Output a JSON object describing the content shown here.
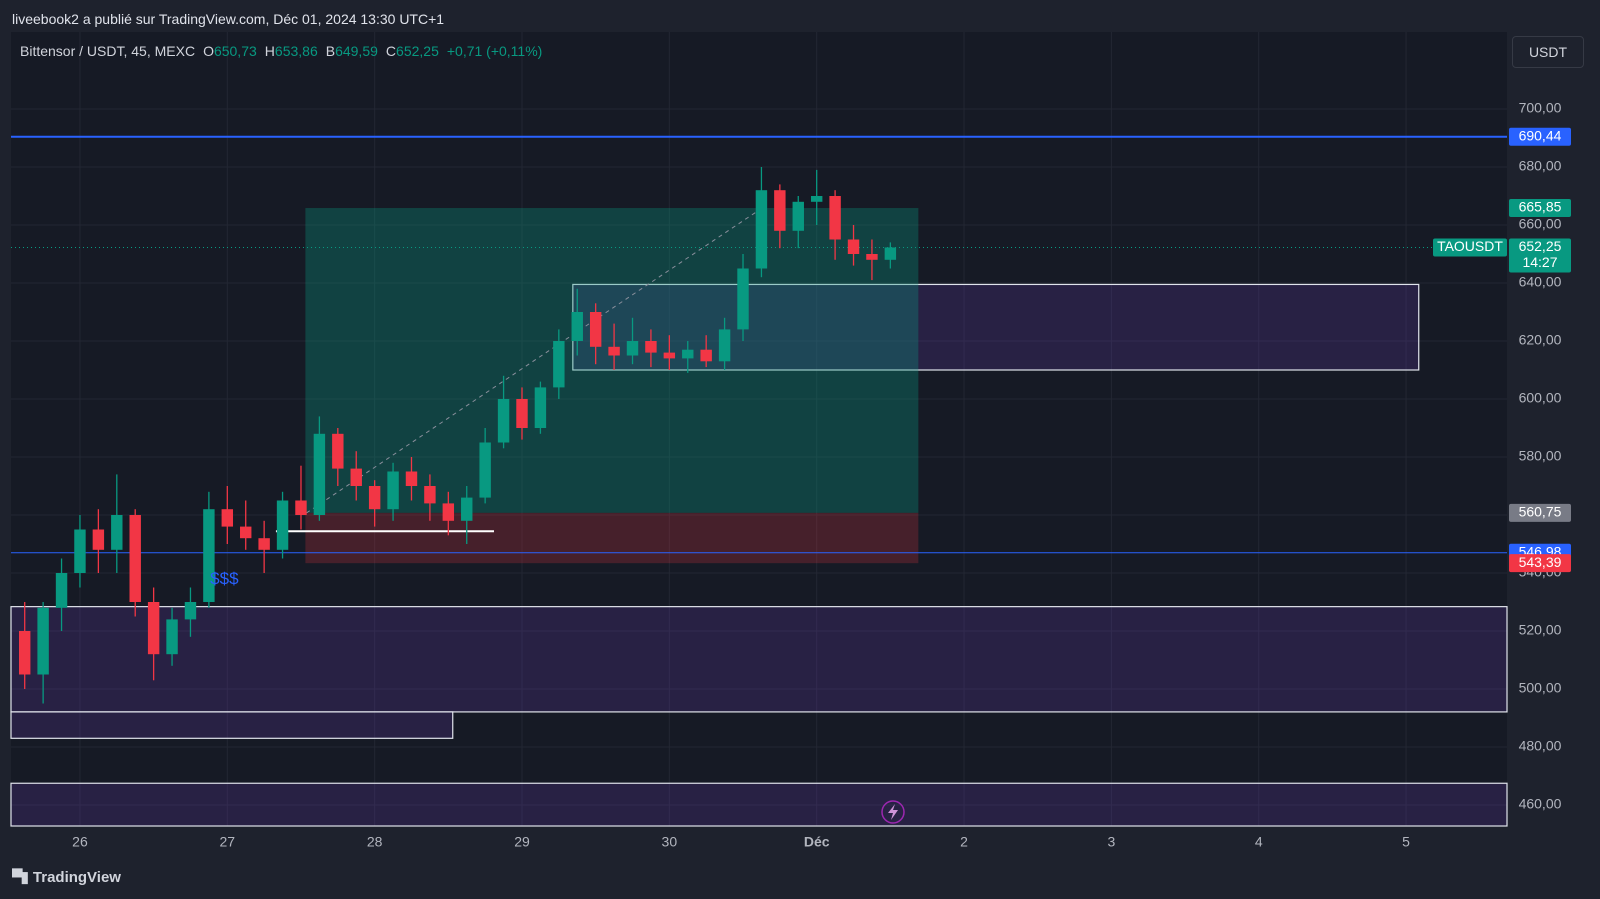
{
  "header": {
    "published": "liveebook2 a publié sur TradingView.com, Déc 01, 2024 13:30 UTC+1"
  },
  "legend": {
    "symbol": "Bittensor / USDT, 45, MEXC",
    "ohlc": [
      {
        "key": "O",
        "value": "650,73"
      },
      {
        "key": "H",
        "value": "653,86"
      },
      {
        "key": "B",
        "value": "649,59"
      },
      {
        "key": "C",
        "value": "652,25"
      }
    ],
    "change": "+0,71 (+0,11%)"
  },
  "currency": "USDT",
  "footer": {
    "brand": "TradingView"
  },
  "chart_data": {
    "type": "candlestick",
    "up_color": "#089981",
    "down_color": "#f23645",
    "x": [
      25.625,
      25.75,
      25.875,
      26.0,
      26.125,
      26.25,
      26.375,
      26.5,
      26.625,
      26.75,
      26.875,
      27.0,
      27.125,
      27.25,
      27.375,
      27.5,
      27.625,
      27.75,
      27.875,
      28.0,
      28.125,
      28.25,
      28.375,
      28.5,
      28.625,
      28.75,
      28.875,
      29.0,
      29.125,
      29.25,
      29.375,
      29.5,
      29.625,
      29.75,
      29.875,
      30.0,
      30.125,
      30.25,
      30.375,
      30.5,
      30.625,
      30.75,
      30.875,
      31.0,
      31.125,
      31.25,
      31.375,
      31.5
    ],
    "open": [
      520,
      505,
      528,
      540,
      555,
      548,
      560,
      530,
      512,
      524,
      530,
      562,
      556,
      552,
      548,
      565,
      560,
      588,
      576,
      570,
      562,
      575,
      570,
      564,
      558,
      566,
      585,
      600,
      590,
      604,
      620,
      630,
      618,
      615,
      620,
      616,
      614,
      617,
      613,
      624,
      645,
      672,
      658,
      668,
      670,
      655,
      650,
      648
    ],
    "high": [
      530,
      530,
      545,
      560,
      562,
      574,
      562,
      535,
      528,
      535,
      568,
      570,
      565,
      558,
      568,
      577,
      594,
      590,
      582,
      572,
      578,
      580,
      574,
      568,
      570,
      590,
      608,
      604,
      606,
      624,
      638,
      633,
      626,
      628,
      624,
      622,
      620,
      622,
      628,
      650,
      680,
      674,
      670,
      679,
      672,
      660,
      655,
      654
    ],
    "low": [
      500,
      495,
      520,
      535,
      540,
      540,
      525,
      503,
      508,
      518,
      528,
      550,
      548,
      540,
      545,
      555,
      558,
      570,
      565,
      556,
      558,
      565,
      558,
      553,
      550,
      564,
      583,
      586,
      588,
      600,
      615,
      612,
      610,
      612,
      611,
      610,
      609,
      611,
      610,
      620,
      642,
      652,
      652,
      660,
      648,
      646,
      641,
      645
    ],
    "close": [
      505,
      528,
      540,
      555,
      548,
      560,
      530,
      512,
      524,
      530,
      562,
      556,
      552,
      548,
      565,
      560,
      588,
      576,
      570,
      562,
      575,
      570,
      564,
      558,
      566,
      585,
      600,
      590,
      604,
      620,
      630,
      618,
      615,
      620,
      616,
      614,
      617,
      613,
      624,
      645,
      672,
      658,
      668,
      670,
      655,
      650,
      648,
      652.25
    ],
    "xlim": [
      25.532,
      35.685
    ],
    "ylim": [
      452.76,
      726.55
    ],
    "xticks": [
      26,
      27,
      28,
      29,
      30,
      {
        "value": 31,
        "label": "Déc"
      },
      {
        "value": 32,
        "label": "2"
      },
      {
        "value": 33,
        "label": "3"
      },
      {
        "value": 34,
        "label": "4"
      },
      {
        "value": 35,
        "label": "5"
      }
    ],
    "yticks": [
      {
        "value": 460,
        "label": "460,00"
      },
      {
        "value": 480,
        "label": "480,00"
      },
      {
        "value": 500,
        "label": "500,00"
      },
      {
        "value": 520,
        "label": "520,00"
      },
      {
        "value": 540,
        "label": "540,00"
      },
      {
        "value": 560,
        "label": "560,00"
      },
      {
        "value": 580,
        "label": "580,00"
      },
      {
        "value": 600,
        "label": "600,00"
      },
      {
        "value": 620,
        "label": "620,00"
      },
      {
        "value": 640,
        "label": "640,00"
      },
      {
        "value": 660,
        "label": "660,00"
      },
      {
        "value": 680,
        "label": "680,00"
      },
      {
        "value": 700,
        "label": "700,00"
      }
    ],
    "grid": true,
    "last_price": {
      "value": 652.25,
      "label": "652,25",
      "symbol": "TAOUSDT",
      "countdown": "14:27",
      "color": "#089981"
    },
    "levels": [
      {
        "value": 690.44,
        "label": "690,44",
        "color": "#2962ff"
      },
      {
        "value": 546.98,
        "label": "546,98",
        "color": "#2962ff"
      }
    ],
    "position": {
      "x_start": 27.53,
      "x_end": 31.69,
      "target": {
        "value": 665.85,
        "label": "665,85",
        "color": "#089981"
      },
      "entry": {
        "value": 560.75,
        "label": "560,75",
        "color": "#787b86"
      },
      "stop": {
        "value": 543.39,
        "label": "543,39",
        "color": "#f23645"
      }
    },
    "zones": [
      {
        "x0": 29.345,
        "x1": 35.086,
        "y0": 610,
        "y1": 639.5
      },
      {
        "x0": 25.532,
        "x1": 35.685,
        "y0": 492.1,
        "y1": 528.4
      },
      {
        "x0": 25.532,
        "x1": 28.53,
        "y0": 483.0,
        "y1": 492.1
      },
      {
        "x0": 25.532,
        "x1": 35.685,
        "y0": 452.76,
        "y1": 467.5
      }
    ],
    "segments": [
      {
        "x0": 27.33,
        "x1": 28.81,
        "y0": 554.4,
        "y1": 554.4,
        "dashed": false
      },
      {
        "x0": 27.537,
        "x1": 30.64,
        "y0": 560.7,
        "y1": 666.2,
        "dashed": true
      }
    ],
    "annotation": {
      "text": "$$$",
      "x": 26.98,
      "y": 543.2
    }
  }
}
